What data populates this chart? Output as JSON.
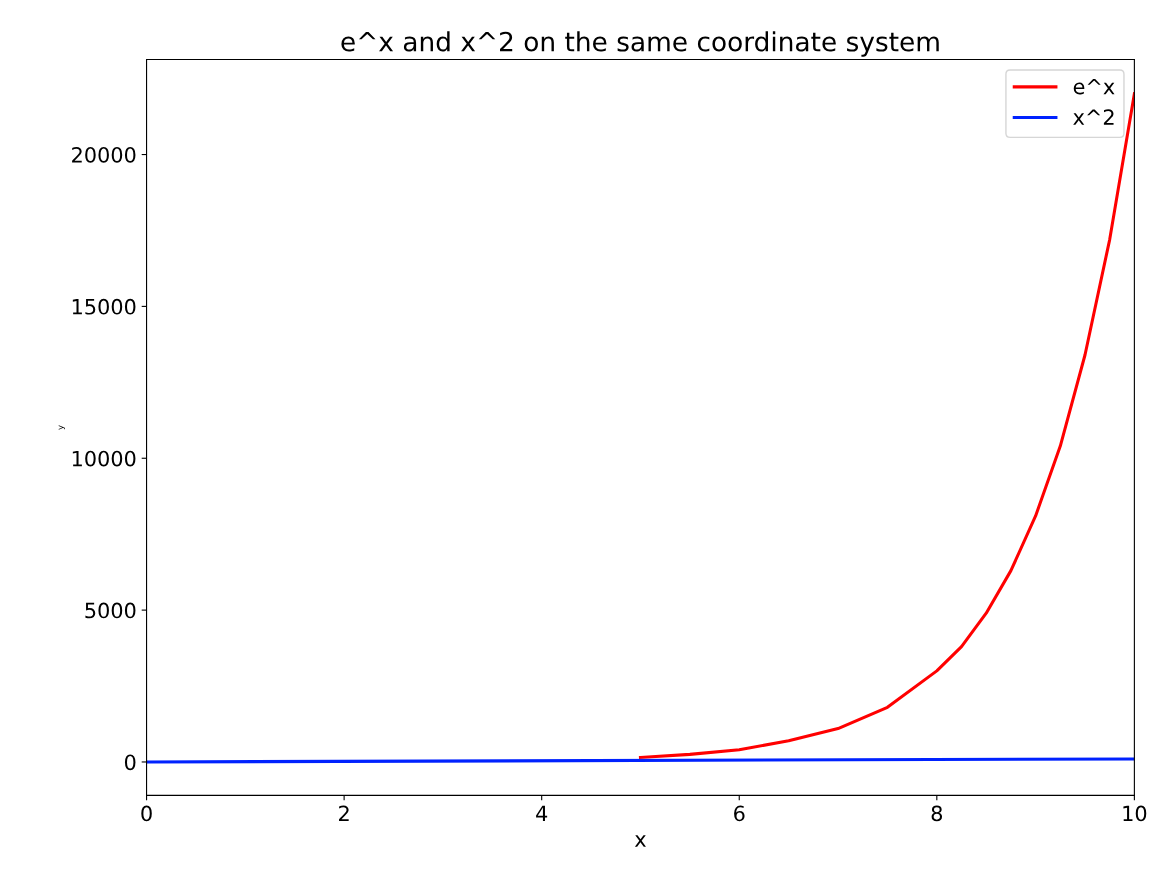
{
  "chart_data": {
    "type": "line",
    "title": "e^x and x^2 on the same coordinate system",
    "xlabel": "x",
    "ylabel": "y",
    "series": [
      {
        "name": "e^x",
        "color": "#ff0000",
        "x": [
          5,
          5.5,
          6,
          6.5,
          7,
          7.5,
          8,
          8.25,
          8.5,
          8.75,
          9,
          9.25,
          9.5,
          9.75,
          10
        ],
        "values": [
          150,
          250,
          400,
          700,
          1100,
          1800,
          3000,
          3800,
          4900,
          6300,
          8100,
          10400,
          13400,
          17200,
          22000
        ]
      },
      {
        "name": "x^2",
        "color": "#0022ff",
        "x": [
          0,
          10
        ],
        "values": [
          0,
          100
        ]
      }
    ],
    "xlim": [
      0,
      10
    ],
    "xticks": [
      0,
      2,
      4,
      6,
      8,
      10
    ],
    "ylim": [
      -1101,
      23127
    ],
    "yticks": [
      0,
      5000,
      10000,
      15000,
      20000
    ],
    "legend": "top right",
    "grid": false
  }
}
